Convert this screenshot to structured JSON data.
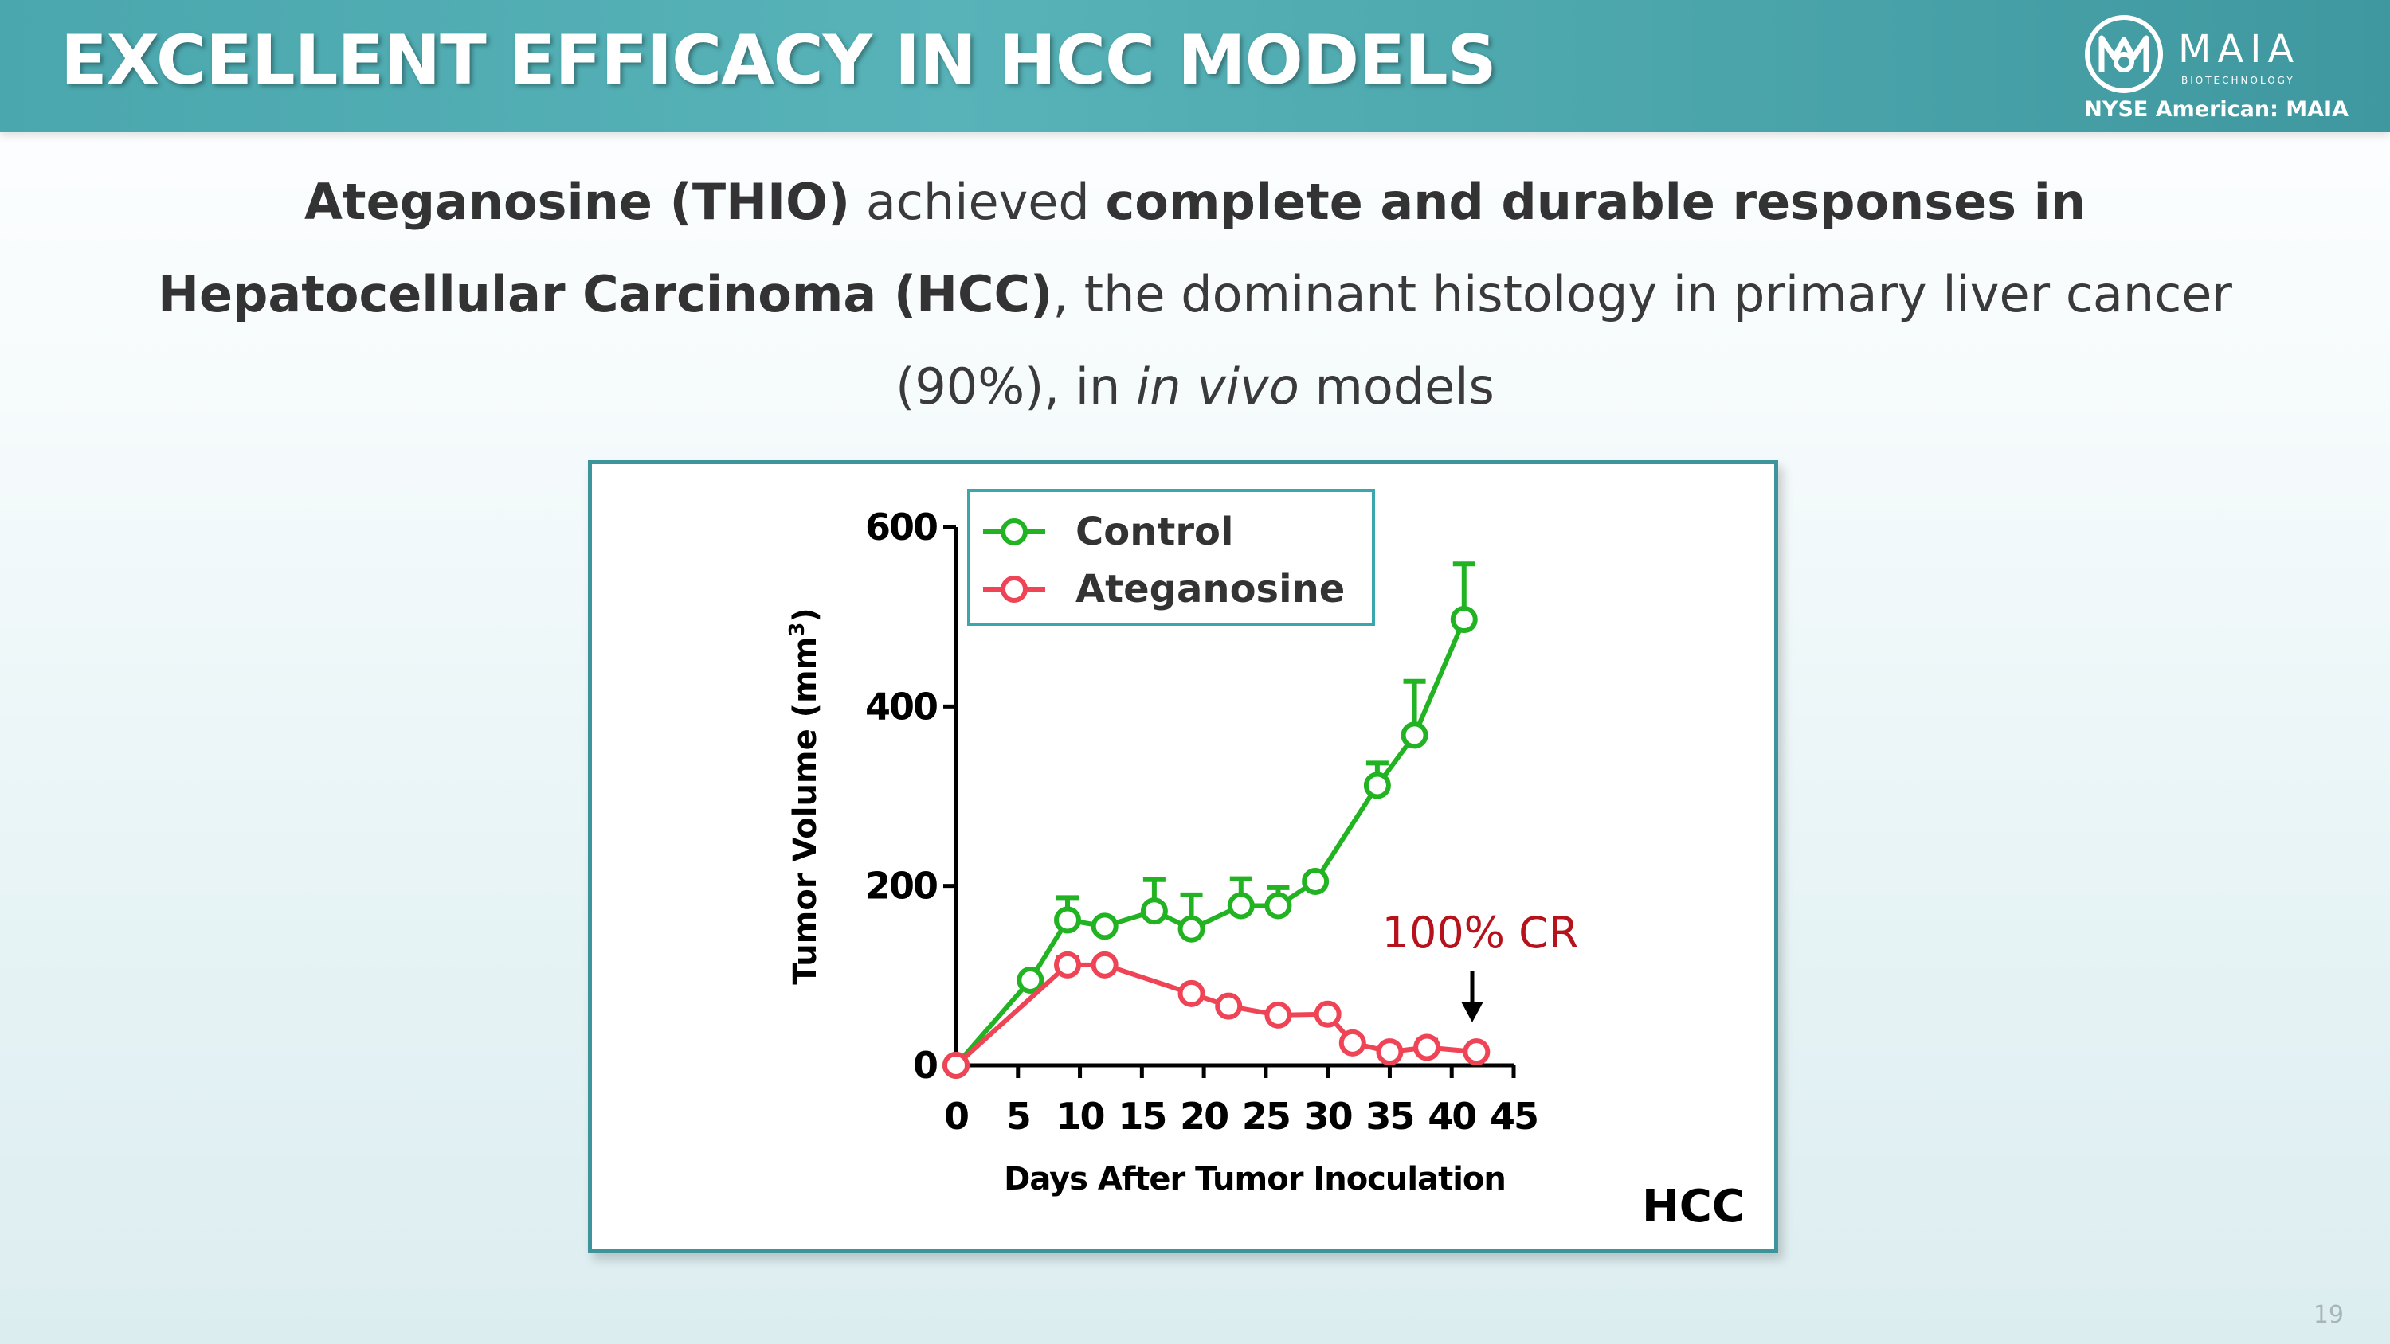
{
  "slide": {
    "title": "EXCELLENT EFFICACY IN HCC MODELS",
    "logo_name": "MAIA",
    "logo_sub": "BIOTECHNOLOGY",
    "ticker": "NYSE American: MAIA",
    "subtitle": {
      "p1": "Ateganosine (THIO)",
      "p2": " achieved ",
      "p3": "complete and durable responses in Hepatocellular Carcinoma (HCC)",
      "p4": ", the dominant histology in primary liver cancer (90%), in ",
      "p5": "in vivo",
      "p6": " models"
    },
    "page_number": "19",
    "colors": {
      "header_teal": "#4aa7ad",
      "chart_border": "#3d959b"
    }
  },
  "chart_data": {
    "type": "line",
    "title": "",
    "xlabel": "Days After Tumor Inoculation",
    "ylabel": "Tumor Volume (mm",
    "ylabel_sup": "3",
    "ylabel_close": ")",
    "xlim": [
      0,
      45
    ],
    "ylim": [
      0,
      600
    ],
    "x_ticks": [
      "0",
      "5",
      "10",
      "15",
      "20",
      "25",
      "30",
      "35",
      "40",
      "45"
    ],
    "y_ticks": [
      "0",
      "200",
      "400",
      "600"
    ],
    "grid": false,
    "legend_position": "top-left",
    "series": [
      {
        "name": "Control",
        "color": "#22b322",
        "x": [
          0,
          6,
          9,
          12,
          16,
          19,
          23,
          26,
          29,
          34,
          37,
          41
        ],
        "y": [
          0,
          95,
          162,
          155,
          172,
          152,
          178,
          178,
          205,
          312,
          368,
          497
        ],
        "err": [
          0,
          0,
          25,
          0,
          35,
          38,
          30,
          20,
          0,
          25,
          60,
          62
        ]
      },
      {
        "name": "Ateganosine",
        "color": "#ee4455",
        "x": [
          0,
          9,
          12,
          19,
          22,
          26,
          30,
          32,
          35,
          38,
          42
        ],
        "y": [
          0,
          112,
          112,
          80,
          66,
          56,
          57,
          25,
          15,
          20,
          15
        ],
        "err": [
          0,
          8,
          0,
          0,
          0,
          0,
          0,
          0,
          0,
          8,
          0
        ]
      }
    ],
    "annotations": [
      {
        "text": "100% CR",
        "color": "#b5121b",
        "x": 42,
        "y": 70
      },
      {
        "text": "HCC",
        "color": "#000000"
      }
    ]
  }
}
